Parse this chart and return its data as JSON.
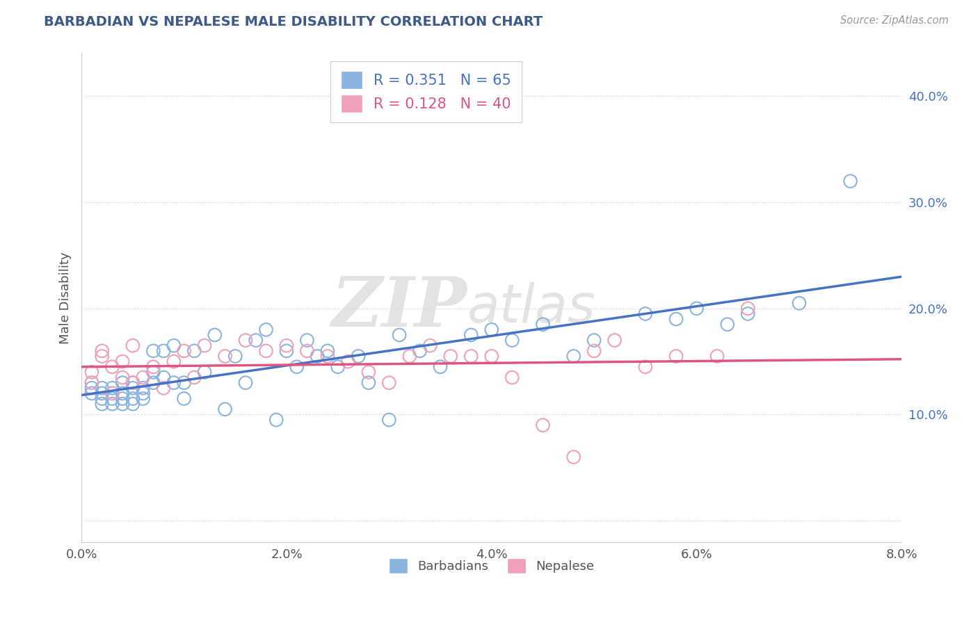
{
  "title": "BARBADIAN VS NEPALESE MALE DISABILITY CORRELATION CHART",
  "source": "Source: ZipAtlas.com",
  "ylabel": "Male Disability",
  "xlim": [
    0.0,
    0.08
  ],
  "ylim": [
    -0.02,
    0.44
  ],
  "xticks": [
    0.0,
    0.02,
    0.04,
    0.06,
    0.08
  ],
  "xtick_labels": [
    "0.0%",
    "2.0%",
    "4.0%",
    "6.0%",
    "8.0%"
  ],
  "yticks": [
    0.0,
    0.1,
    0.2,
    0.3,
    0.4
  ],
  "ytick_labels": [
    "",
    "10.0%",
    "20.0%",
    "30.0%",
    "40.0%"
  ],
  "barbadian_color": "#8ab4e0",
  "nepalese_color": "#f0a0b8",
  "barbadian_line_color": "#4472C4",
  "nepalese_line_color": "#e05580",
  "R_barbadian": 0.351,
  "N_barbadian": 65,
  "R_nepalese": 0.128,
  "N_nepalese": 40,
  "watermark_zip": "ZIP",
  "watermark_atlas": "atlas",
  "background_color": "#ffffff",
  "title_color": "#3d5a8a",
  "axis_label_color": "#555555",
  "tick_color": "#4472C4",
  "barbadian_label": "Barbadians",
  "nepalese_label": "Nepalese",
  "barbadian_x": [
    0.001,
    0.001,
    0.001,
    0.002,
    0.002,
    0.002,
    0.002,
    0.003,
    0.003,
    0.003,
    0.003,
    0.004,
    0.004,
    0.004,
    0.004,
    0.005,
    0.005,
    0.005,
    0.005,
    0.006,
    0.006,
    0.006,
    0.007,
    0.007,
    0.007,
    0.008,
    0.008,
    0.009,
    0.009,
    0.01,
    0.01,
    0.011,
    0.012,
    0.013,
    0.014,
    0.015,
    0.016,
    0.017,
    0.018,
    0.019,
    0.02,
    0.021,
    0.022,
    0.023,
    0.024,
    0.025,
    0.027,
    0.028,
    0.03,
    0.031,
    0.033,
    0.035,
    0.038,
    0.04,
    0.042,
    0.045,
    0.048,
    0.05,
    0.055,
    0.058,
    0.06,
    0.063,
    0.065,
    0.07,
    0.075
  ],
  "barbadian_y": [
    0.13,
    0.125,
    0.12,
    0.125,
    0.12,
    0.115,
    0.11,
    0.125,
    0.12,
    0.115,
    0.11,
    0.13,
    0.12,
    0.115,
    0.11,
    0.125,
    0.13,
    0.115,
    0.11,
    0.12,
    0.125,
    0.115,
    0.16,
    0.14,
    0.13,
    0.16,
    0.135,
    0.165,
    0.13,
    0.13,
    0.115,
    0.16,
    0.14,
    0.175,
    0.105,
    0.155,
    0.13,
    0.17,
    0.18,
    0.095,
    0.16,
    0.145,
    0.17,
    0.155,
    0.16,
    0.145,
    0.155,
    0.13,
    0.095,
    0.175,
    0.16,
    0.145,
    0.175,
    0.18,
    0.17,
    0.185,
    0.155,
    0.17,
    0.195,
    0.19,
    0.2,
    0.185,
    0.195,
    0.205,
    0.32
  ],
  "nepalese_x": [
    0.001,
    0.001,
    0.002,
    0.002,
    0.003,
    0.003,
    0.004,
    0.004,
    0.005,
    0.005,
    0.006,
    0.007,
    0.008,
    0.009,
    0.01,
    0.011,
    0.012,
    0.014,
    0.016,
    0.018,
    0.02,
    0.022,
    0.024,
    0.026,
    0.028,
    0.03,
    0.032,
    0.034,
    0.036,
    0.038,
    0.04,
    0.042,
    0.045,
    0.048,
    0.05,
    0.052,
    0.055,
    0.058,
    0.062,
    0.065
  ],
  "nepalese_y": [
    0.14,
    0.13,
    0.155,
    0.16,
    0.12,
    0.145,
    0.15,
    0.135,
    0.13,
    0.165,
    0.135,
    0.145,
    0.125,
    0.15,
    0.16,
    0.135,
    0.165,
    0.155,
    0.17,
    0.16,
    0.165,
    0.16,
    0.155,
    0.15,
    0.14,
    0.13,
    0.155,
    0.165,
    0.155,
    0.155,
    0.155,
    0.135,
    0.09,
    0.06,
    0.16,
    0.17,
    0.145,
    0.155,
    0.155,
    0.2
  ]
}
